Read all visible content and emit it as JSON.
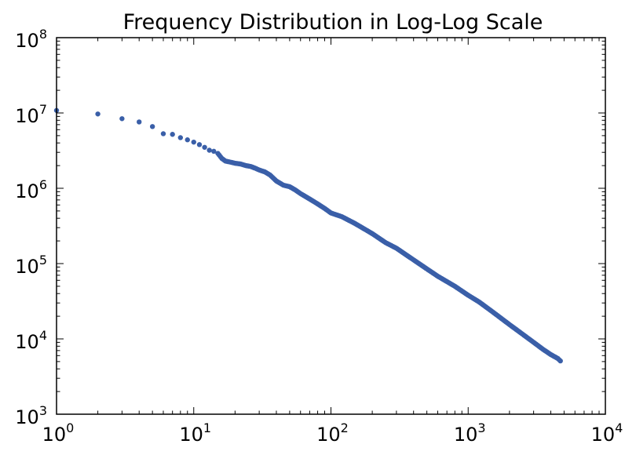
{
  "chart_data": {
    "type": "scatter",
    "title": "Frequency Distribution in Log-Log Scale",
    "xlabel": "",
    "ylabel": "",
    "xscale": "log",
    "yscale": "log",
    "xlim": [
      1,
      10000
    ],
    "ylim": [
      1000,
      100000000
    ],
    "grid": false,
    "marker_color": "#3a5fa8",
    "x_ticks": [
      {
        "base": "10",
        "exp": "0"
      },
      {
        "base": "10",
        "exp": "1"
      },
      {
        "base": "10",
        "exp": "2"
      },
      {
        "base": "10",
        "exp": "3"
      },
      {
        "base": "10",
        "exp": "4"
      }
    ],
    "y_ticks": [
      {
        "base": "10",
        "exp": "3"
      },
      {
        "base": "10",
        "exp": "4"
      },
      {
        "base": "10",
        "exp": "5"
      },
      {
        "base": "10",
        "exp": "6"
      },
      {
        "base": "10",
        "exp": "7"
      },
      {
        "base": "10",
        "exp": "8"
      }
    ],
    "series": [
      {
        "x": [
          1,
          2,
          3,
          4,
          5,
          6,
          7,
          8,
          9,
          10,
          11,
          12,
          13,
          14,
          15,
          16,
          17,
          18,
          19,
          20,
          22,
          24,
          26,
          28,
          30,
          33,
          36,
          40,
          45,
          50,
          55,
          60,
          70,
          80,
          90,
          100,
          120,
          150,
          200,
          250,
          300,
          400,
          500,
          600,
          800,
          1000,
          1200,
          1500,
          2000,
          2500,
          3000,
          3500,
          4000,
          4500,
          4700
        ],
        "y": [
          10800000,
          9700000,
          8400000,
          7600000,
          6600000,
          5300000,
          5200000,
          4700000,
          4400000,
          4100000,
          3800000,
          3500000,
          3200000,
          3100000,
          2900000,
          2500000,
          2300000,
          2250000,
          2200000,
          2150000,
          2100000,
          2000000,
          1950000,
          1850000,
          1750000,
          1650000,
          1500000,
          1250000,
          1100000,
          1050000,
          950000,
          850000,
          720000,
          620000,
          540000,
          470000,
          420000,
          340000,
          250000,
          190000,
          160000,
          112000,
          85000,
          68000,
          50000,
          38000,
          31000,
          23000,
          15500,
          11500,
          9000,
          7300,
          6200,
          5500,
          5100
        ]
      }
    ]
  }
}
